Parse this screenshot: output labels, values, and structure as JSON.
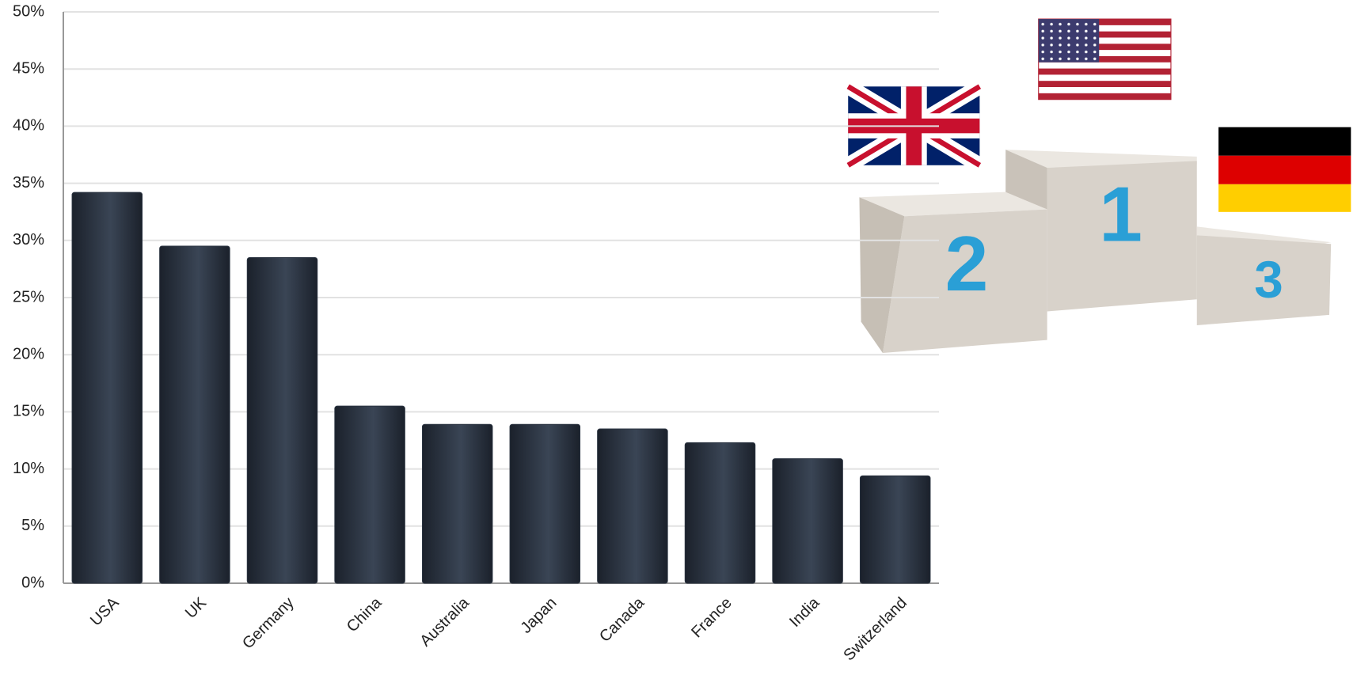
{
  "chart_data": {
    "type": "bar",
    "categories": [
      "USA",
      "UK",
      "Germany",
      "China",
      "Australia",
      "Japan",
      "Canada",
      "France",
      "India",
      "Switzerland"
    ],
    "values": [
      34.2,
      29.5,
      28.5,
      15.5,
      13.9,
      13.9,
      13.5,
      12.3,
      10.9,
      9.4
    ],
    "color": "#2a3340",
    "ylim": [
      0,
      50
    ],
    "yticks": [
      {
        "value": 0,
        "label": "0%"
      },
      {
        "value": 5,
        "label": "5%"
      },
      {
        "value": 10,
        "label": "10%"
      },
      {
        "value": 15,
        "label": "15%"
      },
      {
        "value": 20,
        "label": "20%"
      },
      {
        "value": 25,
        "label": "25%"
      },
      {
        "value": 30,
        "label": "30%"
      },
      {
        "value": 35,
        "label": "35%"
      },
      {
        "value": 40,
        "label": "40%"
      },
      {
        "value": 45,
        "label": "45%"
      },
      {
        "value": 50,
        "label": "50%"
      }
    ],
    "grid": true
  },
  "podium_labels": [
    "1",
    "2",
    "3"
  ]
}
